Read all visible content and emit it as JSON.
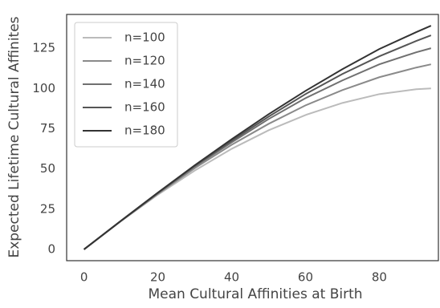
{
  "chart_data": {
    "type": "line",
    "xlabel": "Mean Cultural Affinities at Birth",
    "ylabel": "Expected Lifetime Cultural Affinites",
    "x": [
      0,
      10,
      20,
      30,
      40,
      50,
      60,
      70,
      80,
      90,
      94
    ],
    "series": [
      {
        "name": "n=100",
        "color": "#bbbbbb",
        "values": [
          0,
          17.5,
          34,
          49,
          62.5,
          74,
          83.5,
          91,
          96.5,
          99.5,
          100
        ]
      },
      {
        "name": "n=120",
        "color": "#8a8a8a",
        "values": [
          0,
          17.6,
          34.5,
          50.5,
          65,
          78,
          89.5,
          99,
          107,
          113,
          115
        ]
      },
      {
        "name": "n=140",
        "color": "#707070",
        "values": [
          0,
          17.7,
          35,
          51.5,
          66.5,
          81,
          94,
          105,
          115,
          122.5,
          125
        ]
      },
      {
        "name": "n=160",
        "color": "#555555",
        "values": [
          0,
          17.7,
          35,
          52,
          67.5,
          82.5,
          96.5,
          109,
          120,
          129.5,
          133
        ]
      },
      {
        "name": "n=180",
        "color": "#333333",
        "values": [
          0,
          17.8,
          35.3,
          52.3,
          68.5,
          84,
          98.5,
          112,
          124.5,
          135,
          139
        ]
      }
    ],
    "xlim": [
      -4.7,
      96
    ],
    "ylim": [
      -7,
      146
    ],
    "xticks": [
      0,
      20,
      40,
      60,
      80
    ],
    "yticks": [
      0,
      25,
      50,
      75,
      100,
      125
    ],
    "grid": false,
    "legend": "upper left"
  }
}
